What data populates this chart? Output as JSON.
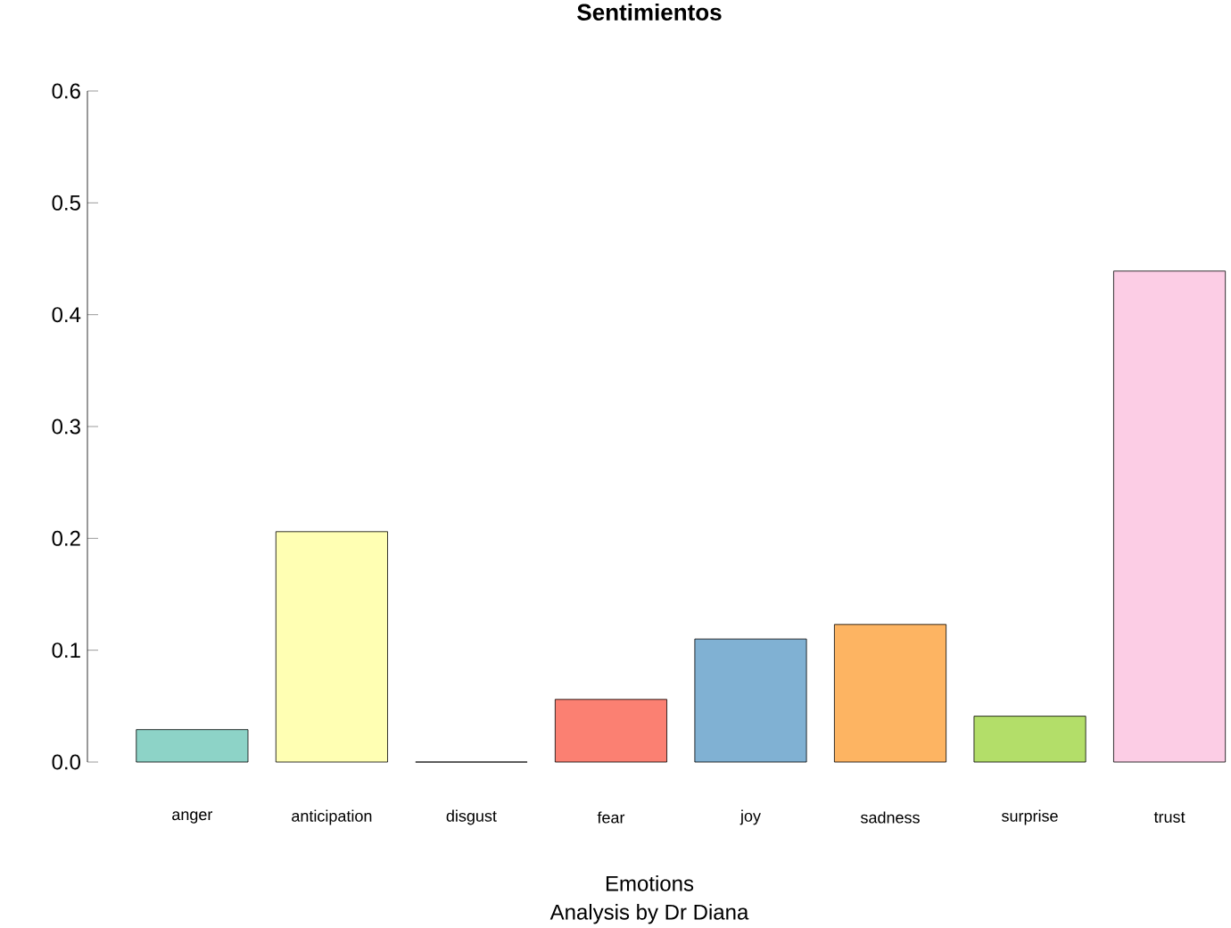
{
  "chart_data": {
    "type": "bar",
    "title": "Sentimientos",
    "xlabel": "Emotions",
    "annotations": [
      "Analysis by Dr Diana"
    ],
    "categories": [
      "anger",
      "anticipation",
      "disgust",
      "fear",
      "joy",
      "sadness",
      "surprise",
      "trust"
    ],
    "values": [
      0.029,
      0.206,
      0,
      0.056,
      0.11,
      0.123,
      0.041,
      0.439
    ],
    "colors": [
      "#8dd3c7",
      "#ffffb3",
      "#bebada",
      "#fb8072",
      "#80b1d3",
      "#fdb462",
      "#b3de69",
      "#fccde5"
    ],
    "ylim": [
      0,
      0.6
    ],
    "yticks": [
      {
        "value": 0,
        "label": "0.0"
      },
      0.1,
      0.2,
      0.3,
      0.4,
      0.5,
      0.6
    ]
  }
}
